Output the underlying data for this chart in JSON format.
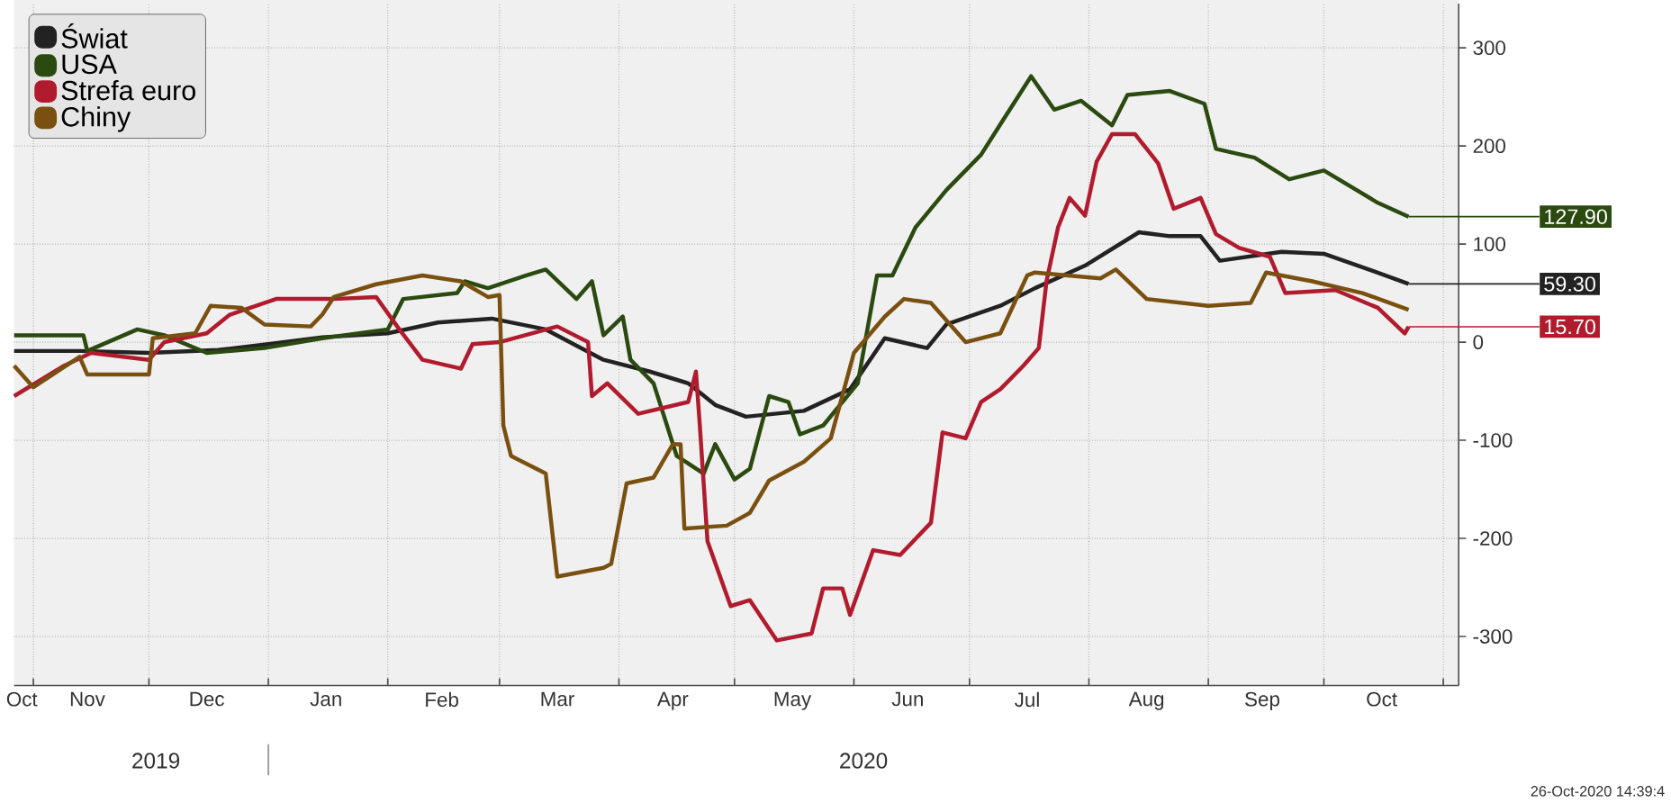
{
  "chart_data": {
    "type": "line",
    "series": [
      {
        "name": "Świat",
        "color": "#222222",
        "x": [
          "2019-10-27",
          "2019-11-13",
          "2019-12-01",
          "2019-12-19",
          "2020-01-01",
          "2020-01-15",
          "2020-02-01",
          "2020-02-14",
          "2020-02-28",
          "2020-03-13",
          "2020-03-28",
          "2020-04-09",
          "2020-04-19",
          "2020-04-26",
          "2020-05-04",
          "2020-05-19",
          "2020-05-31",
          "2020-06-09",
          "2020-06-20",
          "2020-06-25",
          "2020-07-09",
          "2020-07-18",
          "2020-07-31",
          "2020-08-14",
          "2020-08-22",
          "2020-08-30",
          "2020-09-04",
          "2020-09-20",
          "2020-10-01",
          "2020-10-12",
          "2020-10-23"
        ],
        "values": [
          -9,
          -9,
          -11,
          -8,
          -2,
          5,
          9,
          20,
          24,
          13,
          -18,
          -30,
          -42,
          -64,
          -76,
          -70,
          -48,
          4,
          -6,
          18,
          37,
          55,
          78,
          112,
          108,
          108,
          83,
          92,
          90,
          75,
          59.3
        ]
      },
      {
        "name": "USA",
        "color": "#2b4a10",
        "x": [
          "2019-10-27",
          "2019-11-14",
          "2019-11-15",
          "2019-11-28",
          "2019-12-05",
          "2019-12-16",
          "2019-12-31",
          "2020-01-15",
          "2020-02-01",
          "2020-02-05",
          "2020-02-19",
          "2020-02-21",
          "2020-02-27",
          "2020-03-08",
          "2020-03-13",
          "2020-03-21",
          "2020-03-25",
          "2020-03-28",
          "2020-04-02",
          "2020-04-04",
          "2020-04-10",
          "2020-04-16",
          "2020-04-23",
          "2020-04-26",
          "2020-05-01",
          "2020-05-05",
          "2020-05-10",
          "2020-05-15",
          "2020-05-18",
          "2020-05-24",
          "2020-06-02",
          "2020-06-07",
          "2020-06-11",
          "2020-06-17",
          "2020-06-25",
          "2020-07-04",
          "2020-07-10",
          "2020-07-17",
          "2020-07-23",
          "2020-07-30",
          "2020-08-07",
          "2020-08-11",
          "2020-08-22",
          "2020-08-31",
          "2020-09-03",
          "2020-09-13",
          "2020-09-22",
          "2020-10-01",
          "2020-10-15",
          "2020-10-23"
        ],
        "values": [
          7,
          7,
          -9,
          13,
          7,
          -11,
          -6,
          4,
          13,
          44,
          50,
          62,
          55,
          68,
          74,
          44,
          62,
          7,
          26,
          -18,
          -42,
          -116,
          -134,
          -104,
          -140,
          -129,
          -55,
          -61,
          -94,
          -85,
          -42,
          68,
          68,
          117,
          155,
          191,
          228,
          271,
          237,
          246,
          221,
          252,
          256,
          243,
          197,
          188,
          166,
          175,
          142,
          127.9
        ]
      },
      {
        "name": "Strefa euro",
        "color": "#b01c2e",
        "x": [
          "2019-10-27",
          "2019-11-09",
          "2019-11-16",
          "2019-12-01",
          "2019-12-05",
          "2019-12-16",
          "2019-12-22",
          "2020-01-03",
          "2020-01-18",
          "2020-01-29",
          "2020-02-04",
          "2020-02-10",
          "2020-02-20",
          "2020-02-23",
          "2020-03-01",
          "2020-03-16",
          "2020-03-24",
          "2020-03-25",
          "2020-03-29",
          "2020-04-06",
          "2020-04-19",
          "2020-04-21",
          "2020-04-22",
          "2020-04-24",
          "2020-04-30",
          "2020-05-05",
          "2020-05-12",
          "2020-05-21",
          "2020-05-24",
          "2020-05-29",
          "2020-05-31",
          "2020-06-06",
          "2020-06-13",
          "2020-06-21",
          "2020-06-24",
          "2020-06-30",
          "2020-07-04",
          "2020-07-09",
          "2020-07-15",
          "2020-07-19",
          "2020-07-21",
          "2020-07-24",
          "2020-07-27",
          "2020-07-31",
          "2020-08-03",
          "2020-08-07",
          "2020-08-13",
          "2020-08-19",
          "2020-08-23",
          "2020-08-30",
          "2020-09-03",
          "2020-09-09",
          "2020-09-17",
          "2020-09-21",
          "2020-10-04",
          "2020-10-15",
          "2020-10-22",
          "2020-10-23"
        ],
        "values": [
          -55,
          -24,
          -11,
          -18,
          0,
          9,
          28,
          44,
          44,
          46,
          13,
          -18,
          -27,
          -2,
          0,
          16,
          0,
          -55,
          -42,
          -73,
          -61,
          -30,
          -85,
          -203,
          -269,
          -263,
          -304,
          -297,
          -251,
          -251,
          -278,
          -212,
          -217,
          -184,
          -92,
          -98,
          -61,
          -48,
          -24,
          -6,
          62,
          117,
          147,
          129,
          184,
          212,
          212,
          182,
          136,
          147,
          110,
          96,
          87,
          50,
          53,
          35,
          9,
          15.7
        ]
      },
      {
        "name": "Chiny",
        "color": "#7a5010",
        "x": [
          "2019-10-27",
          "2019-11-01",
          "2019-11-13",
          "2019-11-15",
          "2019-12-01",
          "2019-12-02",
          "2019-12-13",
          "2019-12-17",
          "2019-12-25",
          "2019-12-31",
          "2020-01-12",
          "2020-01-15",
          "2020-01-18",
          "2020-01-29",
          "2020-02-10",
          "2020-02-20",
          "2020-02-27",
          "2020-03-01",
          "2020-03-02",
          "2020-03-04",
          "2020-03-13",
          "2020-03-16",
          "2020-03-28",
          "2020-03-30",
          "2020-04-03",
          "2020-04-10",
          "2020-04-15",
          "2020-04-17",
          "2020-04-18",
          "2020-04-29",
          "2020-05-05",
          "2020-05-10",
          "2020-05-19",
          "2020-05-26",
          "2020-06-01",
          "2020-06-09",
          "2020-06-14",
          "2020-06-21",
          "2020-06-30",
          "2020-07-09",
          "2020-07-16",
          "2020-07-18",
          "2020-08-04",
          "2020-08-08",
          "2020-08-16",
          "2020-09-01",
          "2020-09-12",
          "2020-09-16",
          "2020-09-28",
          "2020-10-11",
          "2020-10-23"
        ],
        "values": [
          -24,
          -46,
          -15,
          -33,
          -33,
          4,
          9,
          37,
          35,
          18,
          16,
          28,
          46,
          59,
          68,
          62,
          46,
          48,
          -85,
          -116,
          -134,
          -239,
          -230,
          -226,
          -144,
          -138,
          -104,
          -104,
          -190,
          -187,
          -174,
          -141,
          -122,
          -98,
          -11,
          26,
          44,
          40,
          0,
          9,
          68,
          71,
          65,
          74,
          44,
          37,
          40,
          71,
          62,
          50,
          33
        ]
      }
    ],
    "xlim": [
      "2019-10-27",
      "2020-11-05"
    ],
    "xticks": [
      {
        "value": "2019-10-29",
        "label": "Oct"
      },
      {
        "value": "2019-11-01",
        "label": null
      },
      {
        "value": "2019-11-15",
        "label": "Nov"
      },
      {
        "value": "2019-12-01",
        "label": null
      },
      {
        "value": "2019-12-16",
        "label": "Dec"
      },
      {
        "value": "2020-01-01",
        "label": null
      },
      {
        "value": "2020-01-16",
        "label": "Jan"
      },
      {
        "value": "2020-02-01",
        "label": null
      },
      {
        "value": "2020-02-15",
        "label": "Feb"
      },
      {
        "value": "2020-03-01",
        "label": null
      },
      {
        "value": "2020-03-16",
        "label": "Mar"
      },
      {
        "value": "2020-04-01",
        "label": null
      },
      {
        "value": "2020-04-15",
        "label": "Apr"
      },
      {
        "value": "2020-05-01",
        "label": null
      },
      {
        "value": "2020-05-16",
        "label": "May"
      },
      {
        "value": "2020-06-01",
        "label": null
      },
      {
        "value": "2020-06-15",
        "label": "Jun"
      },
      {
        "value": "2020-07-01",
        "label": null
      },
      {
        "value": "2020-07-16",
        "label": "Jul"
      },
      {
        "value": "2020-08-01",
        "label": null
      },
      {
        "value": "2020-08-16",
        "label": "Aug"
      },
      {
        "value": "2020-09-01",
        "label": null
      },
      {
        "value": "2020-09-15",
        "label": "Sep"
      },
      {
        "value": "2020-10-01",
        "label": null
      },
      {
        "value": "2020-10-16",
        "label": "Oct"
      },
      {
        "value": "2020-11-01",
        "label": null
      }
    ],
    "ylim": [
      -350,
      345
    ],
    "yticks": [
      -300,
      -200,
      -100,
      0,
      100,
      200,
      300
    ],
    "grid": true,
    "legend": "top left",
    "annotations": [
      "2019",
      "2020",
      "26-Oct-2020 14:39:4",
      {
        "text": "127.90",
        "x": "2020-10-23",
        "y": 127.9
      },
      {
        "text": "59.30",
        "x": "2020-10-23",
        "y": 59.3
      },
      {
        "text": "15.70",
        "x": "2020-10-23",
        "y": 15.7
      }
    ]
  }
}
